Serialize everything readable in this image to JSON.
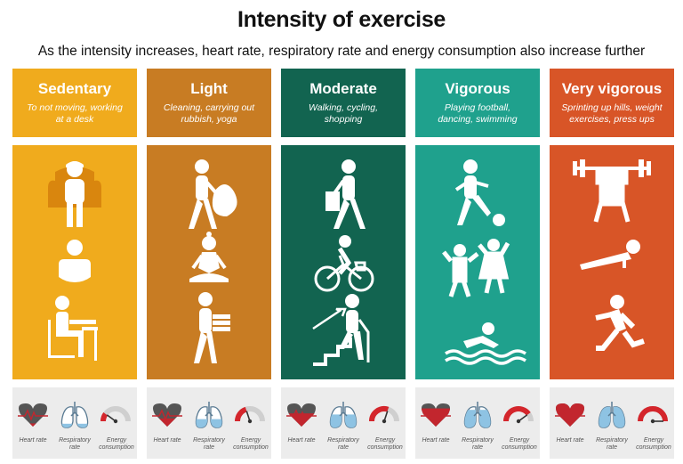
{
  "title": "Intensity of exercise",
  "subtitle": "As the intensity increases, heart rate, respiratory rate and energy consumption also increase further",
  "indicator_labels": {
    "heart_rate": "Heart rate",
    "respiratory_rate": "Respiratory rate",
    "energy_consumption": "Energy consumption"
  },
  "levels": [
    {
      "name": "Sedentary",
      "description": "To not moving, working at a desk",
      "color": "#f0ab1d",
      "indicator_level": 0.2,
      "icons": [
        "person-on-armchair-icon",
        "person-sitting-icon",
        "person-at-desk-icon"
      ]
    },
    {
      "name": "Light",
      "description": "Cleaning, carrying out rubbish, yoga",
      "color": "#c87c23",
      "indicator_level": 0.4,
      "icons": [
        "person-carrying-rubbish-bag-icon",
        "person-yoga-icon",
        "person-carrying-boxes-icon"
      ]
    },
    {
      "name": "Moderate",
      "description": "Walking, cycling, shopping",
      "color": "#126450",
      "indicator_level": 0.6,
      "icons": [
        "person-walking-with-bag-icon",
        "person-cycling-icon",
        "person-climbing-stairs-icon"
      ]
    },
    {
      "name": "Vigorous",
      "description": "Playing football, dancing, swimming",
      "color": "#1fa18d",
      "indicator_level": 0.8,
      "icons": [
        "person-playing-football-icon",
        "people-dancing-icon",
        "person-swimming-icon"
      ]
    },
    {
      "name": "Very vigorous",
      "description": "Sprinting up hills, weight exercises, press ups",
      "color": "#d85527",
      "indicator_level": 1.0,
      "icons": [
        "person-weightlifting-icon",
        "person-press-up-icon",
        "person-sprinting-icon"
      ]
    }
  ]
}
